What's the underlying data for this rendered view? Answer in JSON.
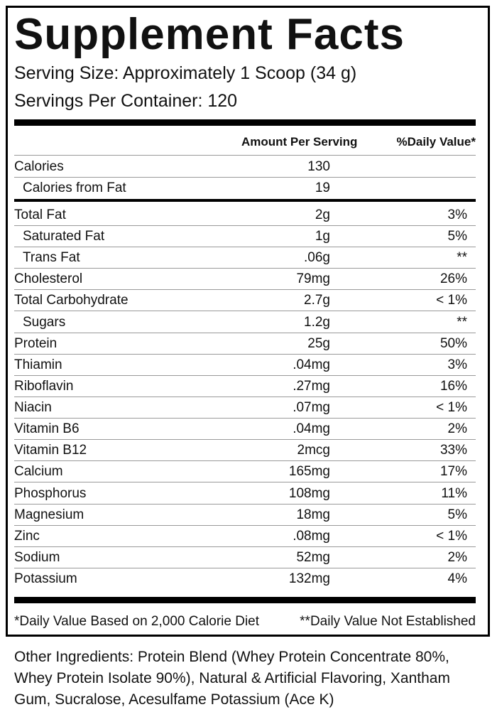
{
  "header": {
    "title": "Supplement Facts",
    "serving_size": "Serving Size: Approximately 1 Scoop (34 g)",
    "servings_per_container": "Servings Per Container: 120"
  },
  "table": {
    "columns": [
      "Amount Per Serving",
      "%Daily Value*"
    ],
    "calories": [
      [
        "Calories",
        "130"
      ],
      [
        "Calories from Fat",
        "19"
      ]
    ],
    "nutrients": [
      [
        "Total Fat",
        "2g",
        "3%"
      ],
      [
        "Saturated Fat",
        "1g",
        "5%"
      ],
      [
        "Trans Fat",
        ".06g",
        "**"
      ],
      [
        "Cholesterol",
        "79mg",
        "26%"
      ],
      [
        "Total Carbohydrate",
        "2.7g",
        "< 1%"
      ],
      [
        "Sugars",
        "1.2g",
        "**"
      ],
      [
        "Protein",
        "25g",
        "50%"
      ],
      [
        "Thiamin",
        ".04mg",
        "3%"
      ],
      [
        "Riboflavin",
        ".27mg",
        "16%"
      ],
      [
        "Niacin",
        ".07mg",
        "< 1%"
      ],
      [
        "Vitamin B6",
        ".04mg",
        "2%"
      ],
      [
        "Vitamin B12",
        "2mcg",
        "33%"
      ],
      [
        "Calcium",
        "165mg",
        "17%"
      ],
      [
        "Phosphorus",
        "108mg",
        "11%"
      ],
      [
        "Magnesium",
        "18mg",
        "5%"
      ],
      [
        "Zinc",
        ".08mg",
        "< 1%"
      ],
      [
        "Sodium",
        "52mg",
        "2%"
      ],
      [
        "Potassium",
        "132mg",
        "4%"
      ]
    ]
  },
  "footnotes": [
    "*Daily Value Based on 2,000 Calorie Diet",
    "**Daily Value Not Established"
  ],
  "other_ingredients": [
    "Other Ingredients: Protein Blend (Whey Protein Concentrate 80%,",
    "Whey Protein Isolate 90%), Natural & Artificial Flavoring, Xantham",
    "Gum, Sucralose, Acesulfame Potassium (Ace K)"
  ]
}
